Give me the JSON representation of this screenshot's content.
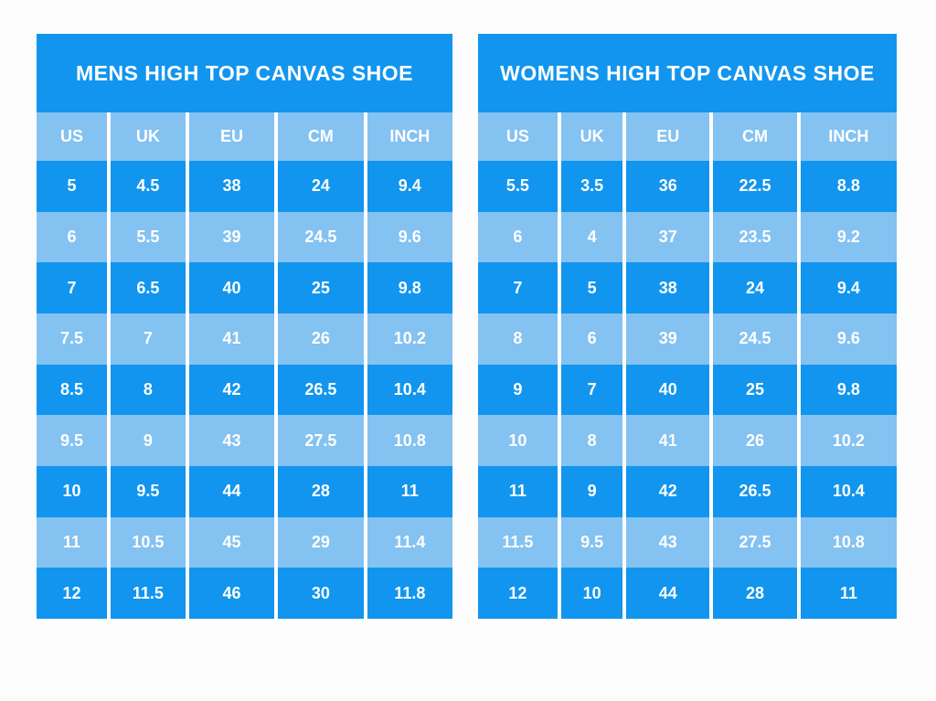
{
  "colors": {
    "dark_blue": "#1295ee",
    "light_blue": "#84c2f1",
    "text": "#ffffff",
    "background": "#fdfdfd"
  },
  "chart_data": [
    {
      "type": "table",
      "title": "MENS HIGH TOP CANVAS SHOE",
      "columns": [
        "US",
        "UK",
        "EU",
        "CM",
        "INCH"
      ],
      "rows": [
        [
          "5",
          "4.5",
          "38",
          "24",
          "9.4"
        ],
        [
          "6",
          "5.5",
          "39",
          "24.5",
          "9.6"
        ],
        [
          "7",
          "6.5",
          "40",
          "25",
          "9.8"
        ],
        [
          "7.5",
          "7",
          "41",
          "26",
          "10.2"
        ],
        [
          "8.5",
          "8",
          "42",
          "26.5",
          "10.4"
        ],
        [
          "9.5",
          "9",
          "43",
          "27.5",
          "10.8"
        ],
        [
          "10",
          "9.5",
          "44",
          "28",
          "11"
        ],
        [
          "11",
          "10.5",
          "45",
          "29",
          "11.4"
        ],
        [
          "12",
          "11.5",
          "46",
          "30",
          "11.8"
        ]
      ]
    },
    {
      "type": "table",
      "title": "WOMENS HIGH TOP CANVAS SHOE",
      "columns": [
        "US",
        "UK",
        "EU",
        "CM",
        "INCH"
      ],
      "rows": [
        [
          "5.5",
          "3.5",
          "36",
          "22.5",
          "8.8"
        ],
        [
          "6",
          "4",
          "37",
          "23.5",
          "9.2"
        ],
        [
          "7",
          "5",
          "38",
          "24",
          "9.4"
        ],
        [
          "8",
          "6",
          "39",
          "24.5",
          "9.6"
        ],
        [
          "9",
          "7",
          "40",
          "25",
          "9.8"
        ],
        [
          "10",
          "8",
          "41",
          "26",
          "10.2"
        ],
        [
          "11",
          "9",
          "42",
          "26.5",
          "10.4"
        ],
        [
          "11.5",
          "9.5",
          "43",
          "27.5",
          "10.8"
        ],
        [
          "12",
          "10",
          "44",
          "28",
          "11"
        ]
      ]
    }
  ]
}
